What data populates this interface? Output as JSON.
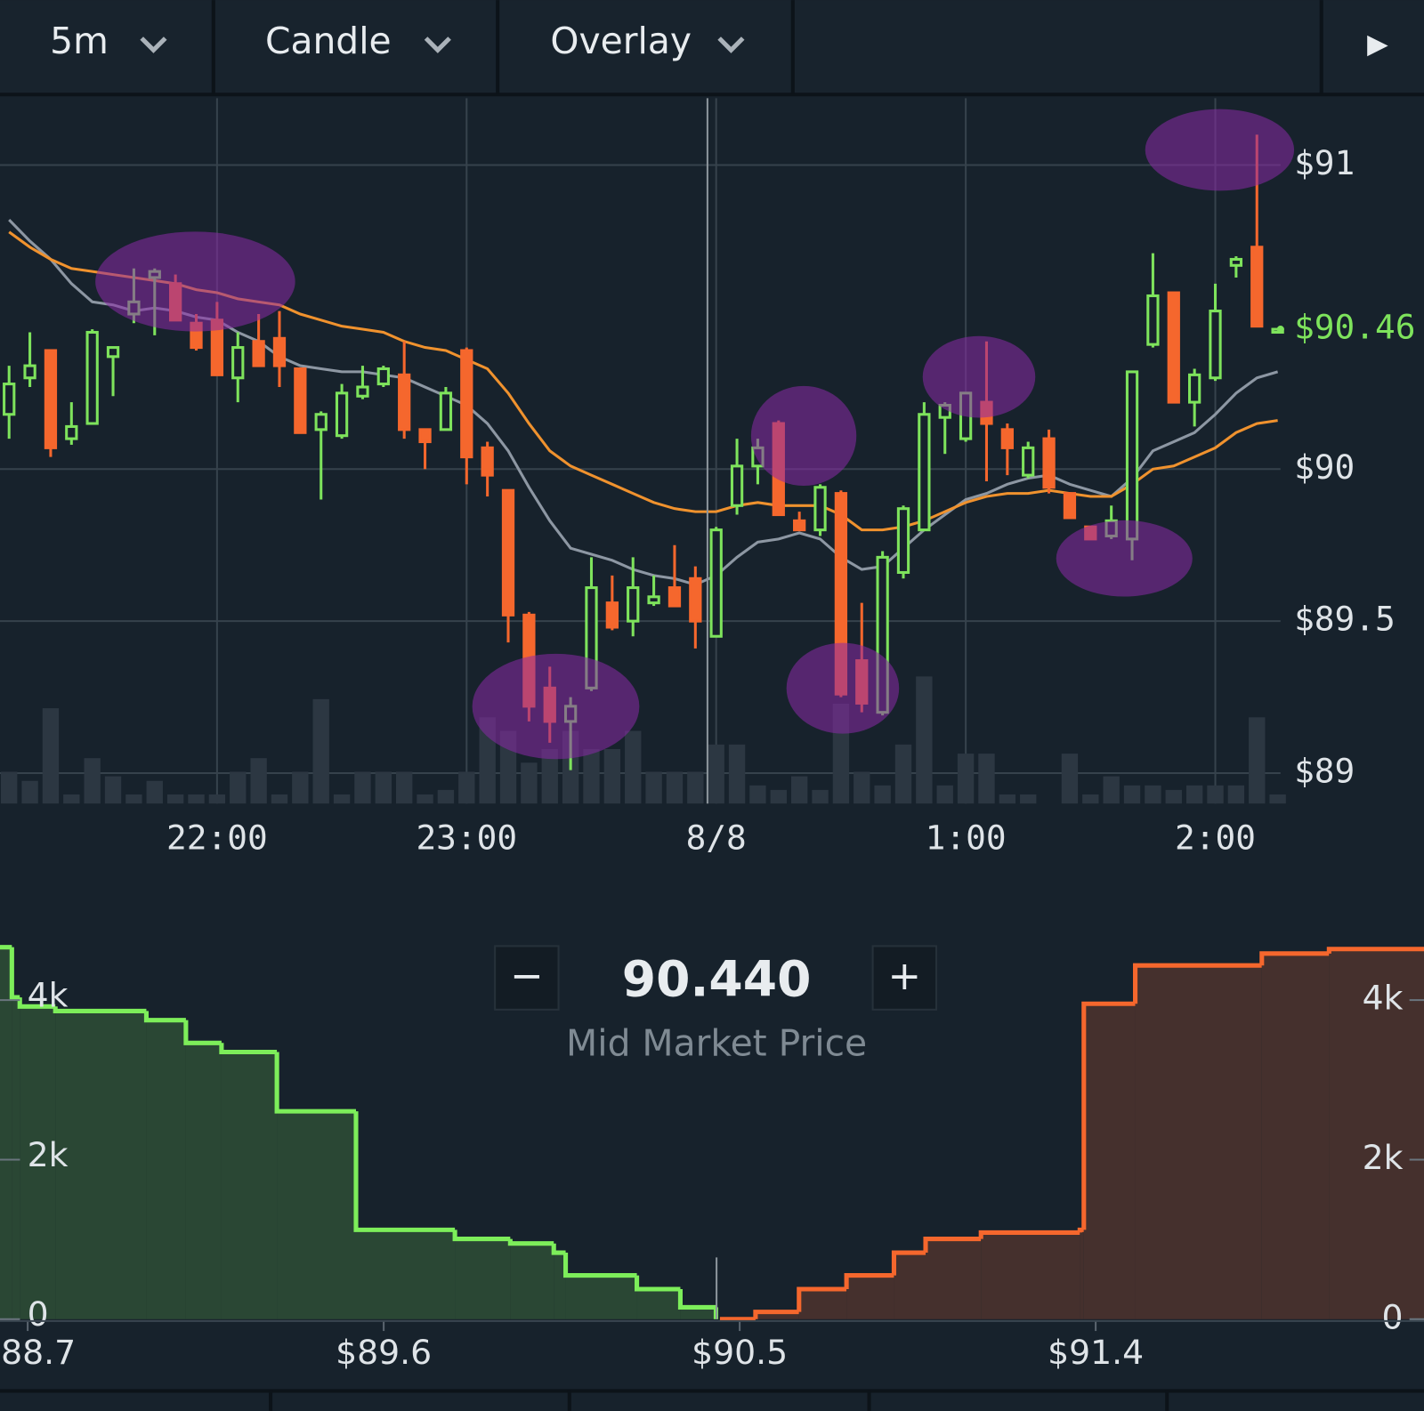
{
  "toolbar": {
    "interval": "5m",
    "chart_style": "Candle",
    "overlay": "Overlay",
    "play": "▶"
  },
  "order_book": {
    "minus": "−",
    "mid_price": "90.440",
    "plus": "+",
    "mid_label": "Mid Market Price"
  },
  "chart_data": [
    {
      "type": "candlestick",
      "categories": [
        null,
        null,
        null,
        null,
        null,
        null,
        null,
        null,
        null,
        null,
        "22:00",
        null,
        null,
        null,
        null,
        null,
        null,
        null,
        null,
        null,
        null,
        null,
        "23:00",
        null,
        null,
        null,
        null,
        null,
        null,
        null,
        null,
        null,
        null,
        null,
        "8/8",
        null,
        null,
        null,
        null,
        null,
        null,
        null,
        null,
        null,
        null,
        null,
        "1:00",
        null,
        null,
        null,
        null,
        null,
        null,
        null,
        null,
        null,
        null,
        null,
        "2:00",
        null,
        null,
        null
      ],
      "open": [
        90.18,
        90.3,
        90.39,
        90.1,
        90.15,
        90.37,
        90.51,
        90.63,
        90.61,
        90.48,
        90.49,
        90.3,
        90.42,
        90.43,
        90.33,
        90.13,
        90.11,
        90.24,
        90.28,
        90.31,
        90.13,
        90.13,
        90.39,
        90.07,
        89.93,
        89.52,
        89.28,
        89.17,
        89.28,
        89.56,
        89.5,
        89.56,
        89.61,
        89.64,
        89.45,
        89.88,
        90.01,
        90.15,
        89.83,
        89.8,
        89.92,
        89.37,
        89.2,
        89.66,
        89.8,
        90.17,
        90.1,
        90.22,
        90.13,
        89.98,
        90.1,
        89.92,
        89.81,
        89.78,
        89.77,
        90.41,
        90.58,
        90.22,
        90.3,
        90.67,
        90.73,
        90.45
      ],
      "high": [
        90.34,
        90.45,
        90.39,
        90.22,
        90.46,
        90.4,
        90.66,
        90.66,
        90.64,
        90.51,
        90.55,
        90.45,
        90.51,
        90.52,
        90.33,
        90.19,
        90.28,
        90.34,
        90.34,
        90.42,
        90.13,
        90.27,
        90.4,
        90.09,
        89.93,
        89.53,
        89.35,
        89.25,
        89.71,
        89.65,
        89.71,
        89.65,
        89.75,
        89.68,
        89.81,
        90.1,
        90.1,
        90.16,
        89.86,
        89.95,
        89.93,
        89.56,
        89.73,
        89.88,
        90.22,
        90.22,
        90.25,
        90.42,
        90.15,
        90.09,
        90.13,
        89.92,
        89.81,
        89.88,
        90.32,
        90.71,
        90.58,
        90.33,
        90.61,
        90.7,
        91.1,
        90.46
      ],
      "low": [
        90.1,
        90.27,
        90.04,
        90.08,
        90.15,
        90.24,
        90.48,
        90.44,
        90.49,
        90.39,
        90.31,
        90.22,
        90.34,
        90.27,
        90.12,
        89.9,
        90.1,
        90.23,
        90.27,
        90.1,
        90.0,
        90.13,
        89.95,
        89.91,
        89.43,
        89.17,
        89.1,
        89.01,
        89.27,
        89.47,
        89.45,
        89.55,
        89.55,
        89.41,
        89.45,
        89.85,
        89.95,
        89.85,
        89.8,
        89.78,
        89.25,
        89.2,
        89.19,
        89.64,
        89.8,
        90.05,
        90.09,
        89.96,
        89.98,
        89.97,
        89.92,
        89.84,
        89.77,
        89.77,
        89.7,
        90.4,
        90.22,
        90.14,
        90.29,
        90.63,
        90.47,
        90.45
      ],
      "close": [
        90.28,
        90.34,
        90.07,
        90.14,
        90.45,
        90.4,
        90.55,
        90.65,
        90.49,
        90.4,
        90.31,
        90.4,
        90.34,
        90.34,
        90.12,
        90.18,
        90.25,
        90.27,
        90.33,
        90.13,
        90.09,
        90.25,
        90.04,
        89.98,
        89.52,
        89.22,
        89.17,
        89.22,
        89.61,
        89.48,
        89.61,
        89.58,
        89.55,
        89.5,
        89.8,
        90.01,
        90.07,
        89.85,
        89.8,
        89.94,
        89.26,
        89.23,
        89.71,
        89.87,
        90.18,
        90.21,
        90.25,
        90.15,
        90.07,
        90.07,
        89.94,
        89.84,
        89.77,
        89.83,
        90.32,
        90.57,
        90.22,
        90.31,
        90.52,
        90.69,
        90.47,
        90.46
      ],
      "volume": [
        35,
        25,
        105,
        10,
        50,
        30,
        10,
        25,
        10,
        10,
        10,
        35,
        50,
        10,
        35,
        115,
        10,
        35,
        35,
        35,
        10,
        15,
        35,
        95,
        80,
        45,
        60,
        80,
        60,
        60,
        80,
        35,
        35,
        35,
        65,
        65,
        20,
        15,
        30,
        15,
        110,
        35,
        20,
        65,
        140,
        20,
        55,
        55,
        10,
        10,
        0,
        55,
        10,
        30,
        20,
        20,
        15,
        20,
        20,
        20,
        95,
        10
      ],
      "series": [
        {
          "color": "#8d97a3",
          "values": [
            90.82,
            90.75,
            90.69,
            90.61,
            90.55,
            90.54,
            90.52,
            90.53,
            90.52,
            90.5,
            90.49,
            90.45,
            90.42,
            90.37,
            90.34,
            90.33,
            90.32,
            90.32,
            90.31,
            90.3,
            90.27,
            90.24,
            90.21,
            90.15,
            90.06,
            89.94,
            89.83,
            89.74,
            89.72,
            89.7,
            89.67,
            89.65,
            89.64,
            89.62,
            89.65,
            89.71,
            89.76,
            89.77,
            89.79,
            89.77,
            89.71,
            89.67,
            89.68,
            89.74,
            89.8,
            89.85,
            89.9,
            89.92,
            89.95,
            89.97,
            89.98,
            89.95,
            89.93,
            89.91,
            89.97,
            90.06,
            90.09,
            90.12,
            90.18,
            90.25,
            90.3,
            90.32
          ]
        },
        {
          "color": "#f0922e",
          "values": [
            90.78,
            90.73,
            90.69,
            90.66,
            90.65,
            90.64,
            90.63,
            90.62,
            90.61,
            90.59,
            90.58,
            90.56,
            90.55,
            90.54,
            90.51,
            90.49,
            90.47,
            90.46,
            90.45,
            90.42,
            90.4,
            90.39,
            90.36,
            90.33,
            90.25,
            90.15,
            90.06,
            90.01,
            89.98,
            89.95,
            89.92,
            89.89,
            89.87,
            89.86,
            89.86,
            89.88,
            89.89,
            89.88,
            89.88,
            89.88,
            89.85,
            89.8,
            89.8,
            89.81,
            89.83,
            89.86,
            89.89,
            89.91,
            89.92,
            89.92,
            89.93,
            89.92,
            89.91,
            89.91,
            89.95,
            90.0,
            90.01,
            90.04,
            90.07,
            90.12,
            90.15,
            90.16
          ]
        }
      ],
      "up_color": "#7ee35c",
      "down_color": "#f5672d",
      "volume_color": "#2c3742",
      "ylim": [
        88.9,
        91.22
      ],
      "yticks": [
        {
          "value": 89,
          "label": "$89"
        },
        {
          "value": 89.5,
          "label": "$89.5"
        },
        {
          "value": 90,
          "label": "$90"
        },
        {
          "value": 91,
          "label": "$91"
        }
      ],
      "last_price": 90.46,
      "last_price_label": "$90.46",
      "last_price_color": "#7ee35c",
      "grid": true
    },
    {
      "type": "depth",
      "series": [
        {
          "color": "#7dee5a",
          "fill": "#2a4734",
          "x": [
            88.63,
            88.66,
            88.68,
            88.77,
            89.0,
            89.1,
            89.19,
            89.33,
            89.53,
            89.78,
            89.92,
            90.03,
            90.06,
            90.24,
            90.35,
            90.44
          ],
          "values": [
            4663,
            4034,
            3920,
            3863,
            3749,
            3463,
            3349,
            2606,
            1120,
            1006,
            949,
            834,
            549,
            377,
            149,
            0
          ]
        },
        {
          "color": "#f5672d",
          "fill": "#45302d",
          "x": [
            90.45,
            90.54,
            90.65,
            90.77,
            90.89,
            90.97,
            91.11,
            91.36,
            91.37,
            91.5,
            91.82,
            91.99
          ],
          "values": [
            0,
            91,
            377,
            549,
            834,
            1006,
            1086,
            1120,
            3954,
            4434,
            4583,
            4640
          ]
        }
      ],
      "xlim": [
        88.63,
        92.23
      ],
      "xticks": [
        {
          "value": 88.7,
          "label": "$88.7"
        },
        {
          "value": 89.6,
          "label": "$89.6"
        },
        {
          "value": 90.5,
          "label": "$90.5"
        },
        {
          "value": 91.4,
          "label": "$91.4"
        }
      ],
      "ylim": [
        0,
        4700
      ],
      "yticks": [
        0,
        {
          "value": 2000,
          "label": "2k"
        },
        {
          "value": 4000,
          "label": "4k"
        }
      ]
    }
  ]
}
